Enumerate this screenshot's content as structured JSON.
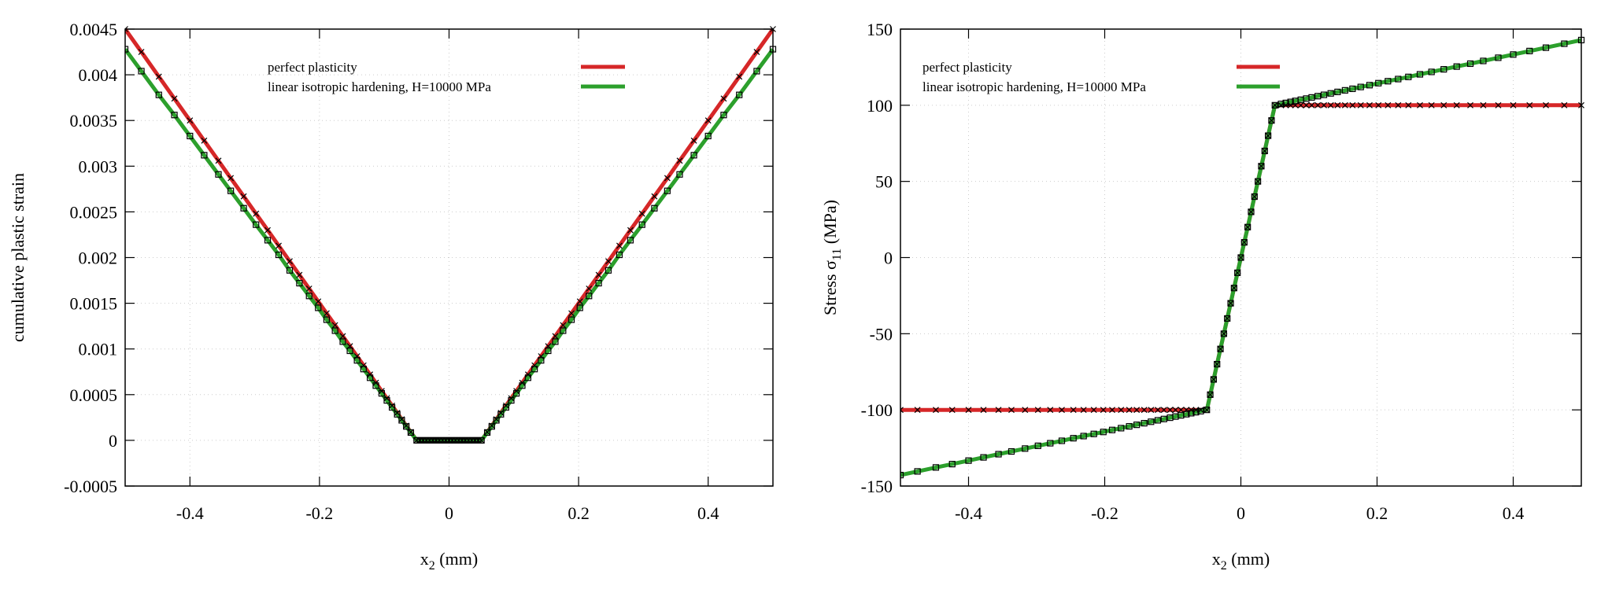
{
  "chart_data": [
    {
      "type": "line",
      "title": "",
      "xlabel": {
        "main": "x",
        "sub": "2",
        "unit": "(mm)"
      },
      "ylabel": {
        "main": "cumulative plastic strain",
        "sub": "",
        "unit": ""
      },
      "xlim": [
        -0.5,
        0.5
      ],
      "ylim": [
        -0.0005,
        0.0045
      ],
      "xticks": [
        -0.4,
        -0.2,
        0,
        0.2,
        0.4
      ],
      "xtick_labels": [
        "-0.4",
        "-0.2",
        "0",
        "0.2",
        "0.4"
      ],
      "yticks": [
        -0.0005,
        0,
        0.0005,
        0.001,
        0.0015,
        0.002,
        0.0025,
        0.003,
        0.0035,
        0.004,
        0.0045
      ],
      "ytick_labels": [
        "-0.0005",
        "0",
        "0.0005",
        "0.001",
        "0.0015",
        "0.002",
        "0.0025",
        "0.003",
        "0.0035",
        "0.004",
        "0.0045"
      ],
      "grid": true,
      "legend_position": "top-center",
      "x": [
        -0.5,
        -0.475,
        -0.448,
        -0.424,
        -0.4,
        -0.378,
        -0.356,
        -0.337,
        -0.317,
        -0.298,
        -0.28,
        -0.263,
        -0.246,
        -0.231,
        -0.216,
        -0.202,
        -0.189,
        -0.176,
        -0.164,
        -0.153,
        -0.142,
        -0.132,
        -0.122,
        -0.113,
        -0.104,
        -0.096,
        -0.088,
        -0.08,
        -0.073,
        -0.066,
        -0.059,
        -0.05,
        -0.045,
        -0.04,
        -0.035,
        -0.03,
        -0.025,
        -0.02,
        -0.015,
        -0.01,
        -0.005,
        0,
        0.005,
        0.01,
        0.015,
        0.02,
        0.025,
        0.03,
        0.035,
        0.04,
        0.045,
        0.05,
        0.059,
        0.066,
        0.073,
        0.08,
        0.088,
        0.096,
        0.104,
        0.113,
        0.122,
        0.132,
        0.142,
        0.153,
        0.164,
        0.176,
        0.189,
        0.202,
        0.216,
        0.231,
        0.246,
        0.263,
        0.28,
        0.298,
        0.317,
        0.337,
        0.356,
        0.378,
        0.4,
        0.424,
        0.448,
        0.475,
        0.5
      ],
      "series": [
        {
          "name": "perfect plasticity",
          "color": "#d62728",
          "marker": "cross",
          "values": [
            0.0045,
            0.00425,
            0.00398,
            0.00374,
            0.0035,
            0.00328,
            0.00306,
            0.00287,
            0.00267,
            0.00248,
            0.0023,
            0.00213,
            0.00196,
            0.00181,
            0.00166,
            0.00152,
            0.00139,
            0.00126,
            0.00114,
            0.00103,
            0.00092,
            0.00082,
            0.00072,
            0.00063,
            0.00054,
            0.00046,
            0.00038,
            0.0003,
            0.00023,
            0.00016,
            9e-05,
            0,
            0,
            0,
            0,
            0,
            0,
            0,
            0,
            0,
            0,
            0,
            0,
            0,
            0,
            0,
            0,
            0,
            0,
            0,
            0,
            0,
            9e-05,
            0.00016,
            0.00023,
            0.0003,
            0.00038,
            0.00046,
            0.00054,
            0.00063,
            0.00072,
            0.00082,
            0.00092,
            0.00103,
            0.00114,
            0.00126,
            0.00139,
            0.00152,
            0.00166,
            0.00181,
            0.00196,
            0.00213,
            0.0023,
            0.00248,
            0.00267,
            0.00287,
            0.00306,
            0.00328,
            0.0035,
            0.00374,
            0.00398,
            0.00425,
            0.0045
          ]
        },
        {
          "name": "linear isotropic hardening, H=10000 MPa",
          "color": "#2ca02c",
          "marker": "square",
          "values": [
            0.00428,
            0.00404,
            0.00378,
            0.00356,
            0.00333,
            0.00312,
            0.00291,
            0.00273,
            0.00254,
            0.00236,
            0.00219,
            0.00203,
            0.00186,
            0.00172,
            0.00158,
            0.00145,
            0.00132,
            0.0012,
            0.00108,
            0.00098,
            0.000875,
            0.00078,
            0.000685,
            0.000599,
            0.000514,
            0.000437,
            0.000361,
            0.000285,
            0.000219,
            0.000152,
            8.56e-05,
            0,
            0,
            0,
            0,
            0,
            0,
            0,
            0,
            0,
            0,
            0,
            0,
            0,
            0,
            0,
            0,
            0,
            0,
            0,
            0,
            0,
            8.56e-05,
            0.000152,
            0.000219,
            0.000285,
            0.000361,
            0.000437,
            0.000514,
            0.000599,
            0.000685,
            0.00078,
            0.000875,
            0.00098,
            0.00108,
            0.0012,
            0.00132,
            0.00145,
            0.00158,
            0.00172,
            0.00186,
            0.00203,
            0.00219,
            0.00236,
            0.00254,
            0.00273,
            0.00291,
            0.00312,
            0.00333,
            0.00356,
            0.00378,
            0.00404,
            0.00428
          ]
        }
      ]
    },
    {
      "type": "line",
      "title": "",
      "xlabel": {
        "main": "x",
        "sub": "2",
        "unit": "(mm)"
      },
      "ylabel": {
        "main": "Stress σ",
        "sub": "11",
        "unit": "(MPa)"
      },
      "xlim": [
        -0.5,
        0.5
      ],
      "ylim": [
        -150,
        150
      ],
      "xticks": [
        -0.4,
        -0.2,
        0,
        0.2,
        0.4
      ],
      "xtick_labels": [
        "-0.4",
        "-0.2",
        "0",
        "0.2",
        "0.4"
      ],
      "yticks": [
        -150,
        -100,
        -50,
        0,
        50,
        100,
        150
      ],
      "ytick_labels": [
        "-150",
        "-100",
        "-50",
        "0",
        "50",
        "100",
        "150"
      ],
      "grid": true,
      "legend_position": "top-left",
      "x": [
        -0.5,
        -0.475,
        -0.448,
        -0.424,
        -0.4,
        -0.378,
        -0.356,
        -0.337,
        -0.317,
        -0.298,
        -0.28,
        -0.263,
        -0.246,
        -0.231,
        -0.216,
        -0.202,
        -0.189,
        -0.176,
        -0.164,
        -0.153,
        -0.142,
        -0.132,
        -0.122,
        -0.113,
        -0.104,
        -0.096,
        -0.088,
        -0.08,
        -0.073,
        -0.066,
        -0.059,
        -0.05,
        -0.045,
        -0.04,
        -0.035,
        -0.03,
        -0.025,
        -0.02,
        -0.015,
        -0.01,
        -0.005,
        0,
        0.005,
        0.01,
        0.015,
        0.02,
        0.025,
        0.03,
        0.035,
        0.04,
        0.045,
        0.05,
        0.059,
        0.066,
        0.073,
        0.08,
        0.088,
        0.096,
        0.104,
        0.113,
        0.122,
        0.132,
        0.142,
        0.153,
        0.164,
        0.176,
        0.189,
        0.202,
        0.216,
        0.231,
        0.246,
        0.263,
        0.28,
        0.298,
        0.317,
        0.337,
        0.356,
        0.378,
        0.4,
        0.424,
        0.448,
        0.475,
        0.5
      ],
      "series": [
        {
          "name": "perfect plasticity",
          "color": "#d62728",
          "marker": "cross",
          "values": [
            -100,
            -100,
            -100,
            -100,
            -100,
            -100,
            -100,
            -100,
            -100,
            -100,
            -100,
            -100,
            -100,
            -100,
            -100,
            -100,
            -100,
            -100,
            -100,
            -100,
            -100,
            -100,
            -100,
            -100,
            -100,
            -100,
            -100,
            -100,
            -100,
            -100,
            -100,
            -100,
            -90,
            -80,
            -70,
            -60,
            -50,
            -40,
            -30,
            -20,
            -10,
            0,
            10,
            20,
            30,
            40,
            50,
            60,
            70,
            80,
            90,
            100,
            100,
            100,
            100,
            100,
            100,
            100,
            100,
            100,
            100,
            100,
            100,
            100,
            100,
            100,
            100,
            100,
            100,
            100,
            100,
            100,
            100,
            100,
            100,
            100,
            100,
            100,
            100,
            100,
            100,
            100,
            100
          ]
        },
        {
          "name": "linear isotropic hardening, H=10000 MPa",
          "color": "#2ca02c",
          "marker": "square",
          "values": [
            -142.8,
            -140.4,
            -137.8,
            -135.6,
            -133.3,
            -131.2,
            -129.1,
            -127.3,
            -125.4,
            -123.6,
            -121.9,
            -120.3,
            -118.6,
            -117.2,
            -115.8,
            -114.5,
            -113.2,
            -112,
            -110.8,
            -109.8,
            -108.75,
            -107.8,
            -106.85,
            -105.99,
            -105.14,
            -104.37,
            -103.61,
            -102.85,
            -102.19,
            -101.52,
            -100.86,
            -100,
            -90,
            -80,
            -70,
            -60,
            -50,
            -40,
            -30,
            -20,
            -10,
            0,
            10,
            20,
            30,
            40,
            50,
            60,
            70,
            80,
            90,
            100,
            100.86,
            101.52,
            102.19,
            102.85,
            103.61,
            104.37,
            105.14,
            105.99,
            106.85,
            107.8,
            108.75,
            109.8,
            110.8,
            112,
            113.2,
            114.5,
            115.8,
            117.2,
            118.6,
            120.3,
            121.9,
            123.6,
            125.4,
            127.3,
            129.1,
            131.2,
            133.3,
            135.6,
            137.8,
            140.4,
            142.8
          ]
        }
      ]
    }
  ]
}
